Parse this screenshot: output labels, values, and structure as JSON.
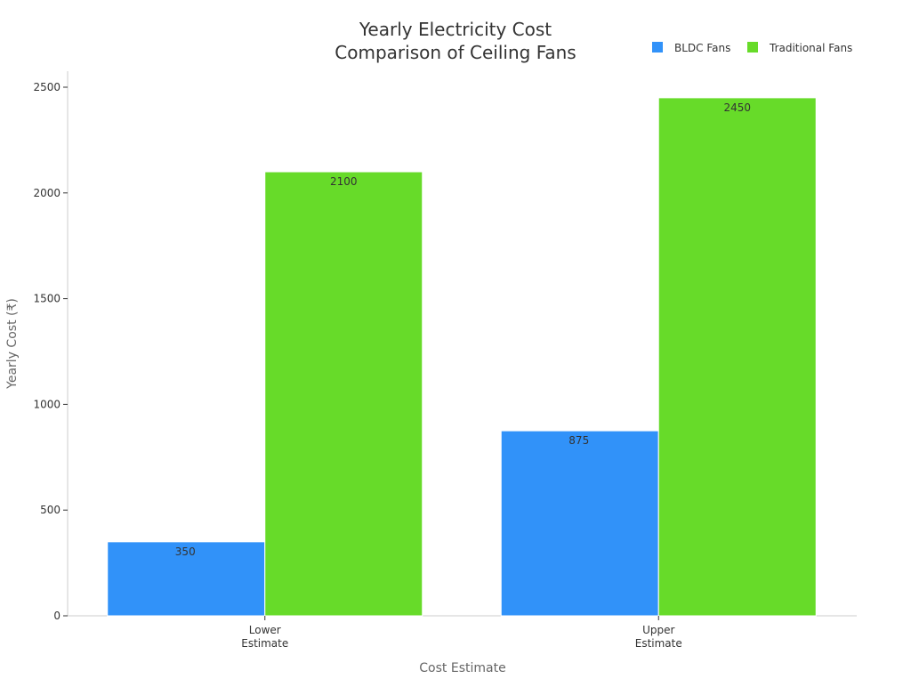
{
  "chart_data": {
    "type": "bar",
    "title_lines": [
      "Yearly Electricity Cost",
      "Comparison of Ceiling Fans"
    ],
    "xlabel": "Cost Estimate",
    "ylabel": "Yearly Cost (₹)",
    "categories": [
      [
        "Lower",
        "Estimate"
      ],
      [
        "Upper",
        "Estimate"
      ]
    ],
    "series": [
      {
        "name": "BLDC Fans",
        "color": "#3192F9",
        "values": [
          350,
          875
        ]
      },
      {
        "name": "Traditional Fans",
        "color": "#67DB29",
        "values": [
          2100,
          2450
        ]
      }
    ],
    "ylim": [
      0,
      2500
    ],
    "yticks": [
      0,
      500,
      1000,
      1500,
      2000,
      2500
    ],
    "legend_position": "top-right",
    "grid": false
  }
}
